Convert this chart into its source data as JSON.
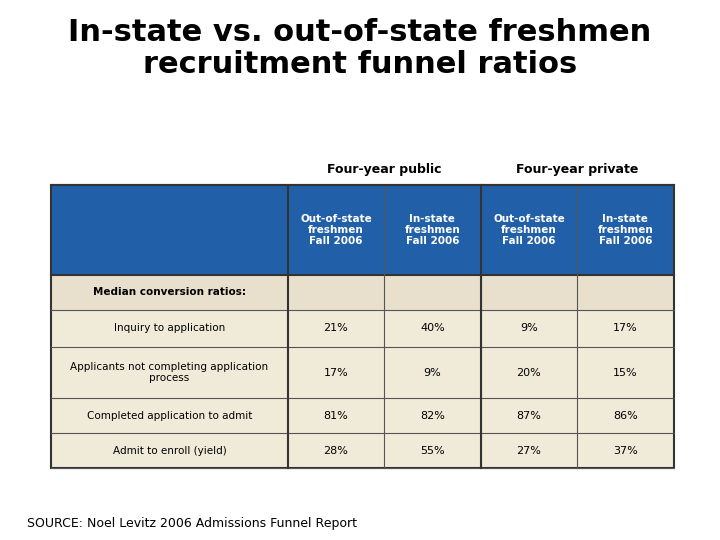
{
  "title_line1": "In-state vs. out-of-state freshmen",
  "title_line2": "recruitment funnel ratios",
  "source": "SOURCE: Noel Levitz 2006 Admissions Funnel Report",
  "group_headers": [
    "Four-year public",
    "Four-year private"
  ],
  "col_labels": [
    "Out-of-state\nfreshmen\nFall 2006",
    "In-state\nfreshmen\nFall 2006",
    "Out-of-state\nfreshmen\nFall 2006",
    "In-state\nfreshmen\nFall 2006"
  ],
  "row_labels": [
    "Median conversion ratios:",
    "Inquiry to application",
    "Applicants not completing application\nprocess",
    "Completed application to admit",
    "Admit to enroll (yield)"
  ],
  "data": [
    [
      "",
      "",
      "",
      ""
    ],
    [
      "21%",
      "40%",
      "9%",
      "17%"
    ],
    [
      "17%",
      "9%",
      "20%",
      "15%"
    ],
    [
      "81%",
      "82%",
      "87%",
      "86%"
    ],
    [
      "28%",
      "55%",
      "27%",
      "37%"
    ]
  ],
  "header_bg": "#2160a8",
  "header_text": "#ffffff",
  "row_bg": "#f0ead8",
  "median_row_bg": "#e8e0cc",
  "border_color": "#333333",
  "inner_line_color": "#555555",
  "bg_color": "#ffffff",
  "title_fontsize": 22,
  "group_header_fontsize": 9,
  "col_header_fontsize": 7.5,
  "row_label_fontsize": 7.5,
  "data_fontsize": 8
}
